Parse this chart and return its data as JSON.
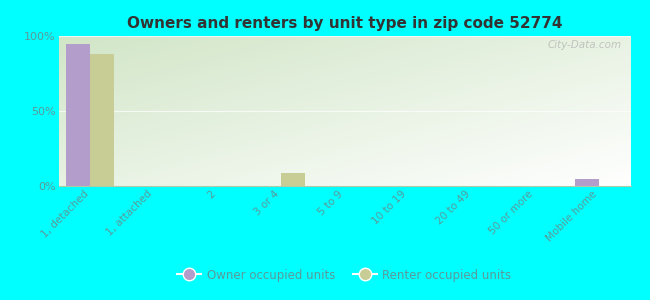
{
  "title": "Owners and renters by unit type in zip code 52774",
  "categories": [
    "1, detached",
    "1, attached",
    "2",
    "3 or 4",
    "5 to 9",
    "10 to 19",
    "20 to 49",
    "50 or more",
    "Mobile home"
  ],
  "owner_values": [
    95,
    0,
    0,
    0,
    0,
    0,
    0,
    0,
    5
  ],
  "renter_values": [
    88,
    0,
    0,
    9,
    0,
    0,
    0,
    0,
    0
  ],
  "owner_color": "#b39dca",
  "renter_color": "#c8cd96",
  "background_color": "#00ffff",
  "title_color": "#333333",
  "tick_color": "#5a9a9a",
  "ylim": [
    0,
    100
  ],
  "yticks": [
    0,
    50,
    100
  ],
  "ytick_labels": [
    "0%",
    "50%",
    "100%"
  ],
  "watermark": "City-Data.com",
  "legend_owner": "Owner occupied units",
  "legend_renter": "Renter occupied units",
  "bar_width": 0.38,
  "grad_color_top": "#c8d8a0",
  "grad_color_bottom": "#f0f8e8"
}
